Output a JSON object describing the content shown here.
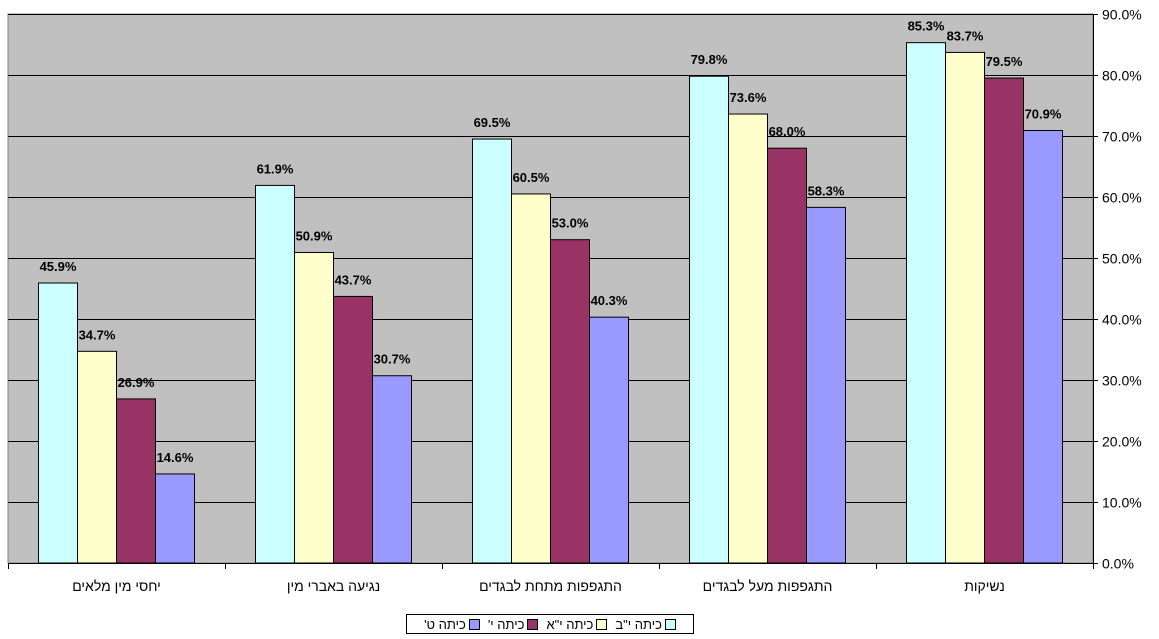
{
  "chart_data": {
    "type": "bar",
    "categories": [
      "יחסי מין מלאים",
      "נגיעה באברי מין",
      "התגפפות מתחת לבגדים",
      "התגפפות מעל לבגדים",
      "נשיקות"
    ],
    "series": [
      {
        "name": "כיתה י\"ב",
        "color": "#ccffff",
        "values": [
          45.9,
          61.9,
          69.5,
          79.8,
          85.3
        ]
      },
      {
        "name": "כיתה י\"א",
        "color": "#ffffcc",
        "values": [
          34.7,
          50.9,
          60.5,
          73.6,
          83.7
        ]
      },
      {
        "name": "כיתה י'",
        "color": "#993366",
        "values": [
          26.9,
          43.7,
          53.0,
          68.0,
          79.5
        ]
      },
      {
        "name": "כיתה ט'",
        "color": "#9999ff",
        "values": [
          14.6,
          30.7,
          40.3,
          58.3,
          70.9
        ]
      }
    ],
    "y_ticks": [
      "0.0%",
      "10.0%",
      "20.0%",
      "30.0%",
      "40.0%",
      "50.0%",
      "60.0%",
      "70.0%",
      "80.0%",
      "90.0%"
    ],
    "ylim": [
      0,
      90
    ],
    "y_axis_side": "right",
    "grid": true,
    "plot_background": "#c0c0c0",
    "legend_position": "bottom",
    "value_format": "percent-1-decimal"
  }
}
